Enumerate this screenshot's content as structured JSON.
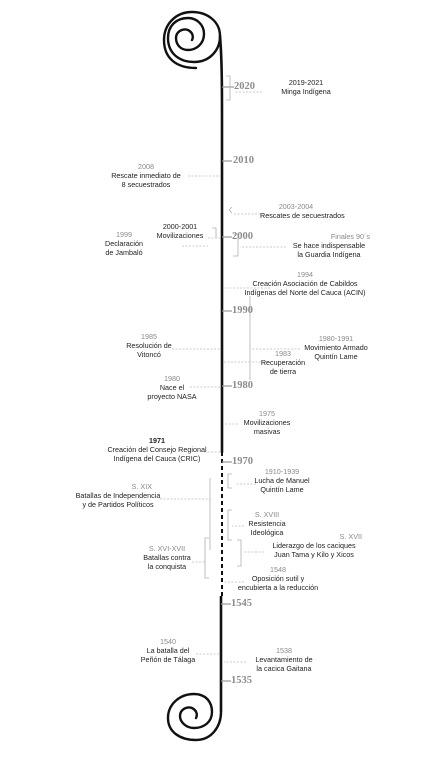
{
  "decades": {
    "d2020": "2020",
    "d2010": "2010",
    "d2000": "2000",
    "d1990": "1990",
    "d1980": "1980",
    "d1970": "1970",
    "d1545": "1545",
    "d1535": "1535"
  },
  "events": {
    "minga": {
      "year": "2019-2021",
      "text": "Minga Indígena"
    },
    "rescate_inmediato": {
      "year": "2008",
      "line1": "Rescate inmediato de",
      "line2": "8 secuestrados"
    },
    "rescates": {
      "year": "2003-2004",
      "text": "Rescates de secuestrados"
    },
    "movilizaciones_2000": {
      "year": "2000-2001",
      "text": "Movilizaciones"
    },
    "jambalo": {
      "year": "1999",
      "line1": "Declaración",
      "line2": "de Jambaló"
    },
    "guardia": {
      "year": "Finales 90´s",
      "line1": "Se hace indispensable",
      "line2": "la Guardia Indígena"
    },
    "acin": {
      "year": "1994",
      "line1": "Creación Asociación de Cabildos",
      "line2": "Indígenas del Norte del Cauca (ACIN)"
    },
    "vitonco": {
      "year": "1985",
      "line1": "Resolución de",
      "line2": "Vitoncó"
    },
    "quintin_armado": {
      "year": "1980-1991",
      "line1": "Movimiento Armado",
      "line2": "Quintín Lame"
    },
    "recuperacion": {
      "year": "1983",
      "line1": "Recuperación",
      "line2": "de tierra"
    },
    "nasa": {
      "year": "1980",
      "line1": "Nace el",
      "line2": "proyecto NASA"
    },
    "movilizaciones_1975": {
      "year": "1975",
      "line1": "Movilizaciones",
      "line2": "masivas"
    },
    "cric": {
      "year": "1971",
      "line1": "Creación del Consejo Regional",
      "line2": "Indígena del Cauca (CRIC)"
    },
    "lucha_manuel": {
      "year": "1910-1939",
      "line1": "Lucha de Manuel",
      "line2": "Quintín Lame"
    },
    "batallas_xix": {
      "year": "S. XIX",
      "line1": "Batallas de Independencia",
      "line2": "y de Partidos Políticos"
    },
    "resistencia": {
      "year": "S. XVIII",
      "line1": "Resistencia",
      "line2": "Ideológica"
    },
    "liderazgo": {
      "year": "S. XVII",
      "line1": "Liderazgo de los caciques",
      "line2": "Juan Tama y Kilo y Xicos"
    },
    "batallas_conquista": {
      "year": "S. XVI-XVII",
      "line1": "Batallas contra",
      "line2": "la conquista"
    },
    "oposicion": {
      "year": "1548",
      "line1": "Oposición sutil y",
      "line2": "encubierta a la reducción"
    },
    "talaga": {
      "year": "1540",
      "line1": "La batalla del",
      "line2": "Peñón de Tálaga"
    },
    "gaitana": {
      "year": "1538",
      "line1": "Levantamiento de",
      "line2": "la cacica Gaitana"
    }
  },
  "colors": {
    "spine": "#111111",
    "year": "#8a8a8a",
    "decade": "#8c8c8c",
    "connector": "#b5b5b5"
  }
}
